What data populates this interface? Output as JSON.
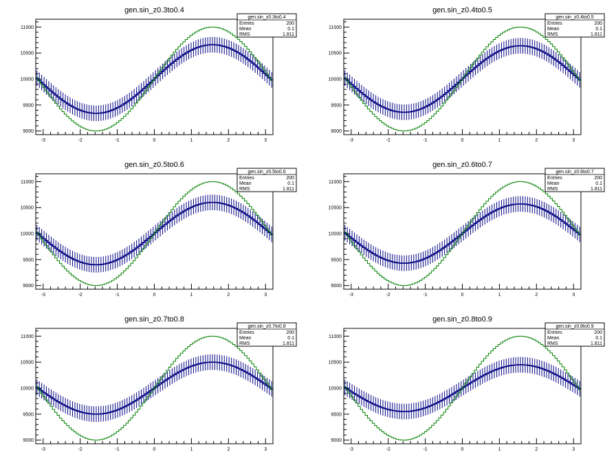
{
  "chart_data": [
    {
      "type": "line",
      "title": "gen.sin_z0.3to0.4",
      "stats": {
        "name": "gen.sin_z0.3to0.4",
        "entries_label": "Entries",
        "entries": "200",
        "mean_label": "Mean",
        "mean": "0.1",
        "rms_label": "RMS",
        "rms": "1.811"
      },
      "xlim": [
        -3.2,
        3.2
      ],
      "ylim": [
        8930,
        11150
      ],
      "xticks": [
        -3,
        -2,
        -1,
        0,
        1,
        2,
        3
      ],
      "yticks": [
        9000,
        9500,
        10000,
        10500,
        11000
      ],
      "model": {
        "color": "#008000",
        "offset": 10000,
        "amplitude": 1000
      },
      "series": {
        "color": "#000080",
        "offset": 10000,
        "amplitude": 660,
        "error": 150,
        "bins": 100
      }
    },
    {
      "type": "line",
      "title": "gen.sin_z0.4to0.5",
      "stats": {
        "name": "gen.sin_z0.4to0.5",
        "entries_label": "Entries",
        "entries": "200",
        "mean_label": "Mean",
        "mean": "0.1",
        "rms_label": "RMS",
        "rms": "1.811"
      },
      "xlim": [
        -3.2,
        3.2
      ],
      "ylim": [
        8930,
        11150
      ],
      "xticks": [
        -3,
        -2,
        -1,
        0,
        1,
        2,
        3
      ],
      "yticks": [
        9000,
        9500,
        10000,
        10500,
        11000
      ],
      "model": {
        "color": "#008000",
        "offset": 10000,
        "amplitude": 1000
      },
      "series": {
        "color": "#000080",
        "offset": 10000,
        "amplitude": 640,
        "error": 150,
        "bins": 100
      }
    },
    {
      "type": "line",
      "title": "gen.sin_z0.5to0.6",
      "stats": {
        "name": "gen.sin_z0.5to0.6",
        "entries_label": "Entries",
        "entries": "200",
        "mean_label": "Mean",
        "mean": "0.1",
        "rms_label": "RMS",
        "rms": "1.811"
      },
      "xlim": [
        -3.2,
        3.2
      ],
      "ylim": [
        8930,
        11150
      ],
      "xticks": [
        -3,
        -2,
        -1,
        0,
        1,
        2,
        3
      ],
      "yticks": [
        9000,
        9500,
        10000,
        10500,
        11000
      ],
      "model": {
        "color": "#008000",
        "offset": 10000,
        "amplitude": 1000
      },
      "series": {
        "color": "#000080",
        "offset": 10000,
        "amplitude": 600,
        "error": 150,
        "bins": 100
      }
    },
    {
      "type": "line",
      "title": "gen.sin_z0.6to0.7",
      "stats": {
        "name": "gen.sin_z0.6to0.7",
        "entries_label": "Entries",
        "entries": "200",
        "mean_label": "Mean",
        "mean": "0.1",
        "rms_label": "RMS",
        "rms": "1.811"
      },
      "xlim": [
        -3.2,
        3.2
      ],
      "ylim": [
        8930,
        11150
      ],
      "xticks": [
        -3,
        -2,
        -1,
        0,
        1,
        2,
        3
      ],
      "yticks": [
        9000,
        9500,
        10000,
        10500,
        11000
      ],
      "model": {
        "color": "#008000",
        "offset": 10000,
        "amplitude": 1000
      },
      "series": {
        "color": "#000080",
        "offset": 10000,
        "amplitude": 570,
        "error": 150,
        "bins": 100
      }
    },
    {
      "type": "line",
      "title": "gen.sin_z0.7to0.8",
      "stats": {
        "name": "gen.sin_z0.7to0.8",
        "entries_label": "Entries",
        "entries": "200",
        "mean_label": "Mean",
        "mean": "0.1",
        "rms_label": "RMS",
        "rms": "1.811"
      },
      "xlim": [
        -3.2,
        3.2
      ],
      "ylim": [
        8930,
        11150
      ],
      "xticks": [
        -3,
        -2,
        -1,
        0,
        1,
        2,
        3
      ],
      "yticks": [
        9000,
        9500,
        10000,
        10500,
        11000
      ],
      "model": {
        "color": "#008000",
        "offset": 10000,
        "amplitude": 1000
      },
      "series": {
        "color": "#000080",
        "offset": 10000,
        "amplitude": 500,
        "error": 150,
        "bins": 100
      }
    },
    {
      "type": "line",
      "title": "gen.sin_z0.8to0.9",
      "stats": {
        "name": "gen.sin_z0.8to0.9",
        "entries_label": "Entries",
        "entries": "200",
        "mean_label": "Mean",
        "mean": "0.1",
        "rms_label": "RMS",
        "rms": "1.811"
      },
      "xlim": [
        -3.2,
        3.2
      ],
      "ylim": [
        8930,
        11150
      ],
      "xticks": [
        -3,
        -2,
        -1,
        0,
        1,
        2,
        3
      ],
      "yticks": [
        9000,
        9500,
        10000,
        10500,
        11000
      ],
      "model": {
        "color": "#008000",
        "offset": 10000,
        "amplitude": 1000
      },
      "series": {
        "color": "#000080",
        "offset": 10000,
        "amplitude": 450,
        "error": 150,
        "bins": 100
      }
    }
  ]
}
